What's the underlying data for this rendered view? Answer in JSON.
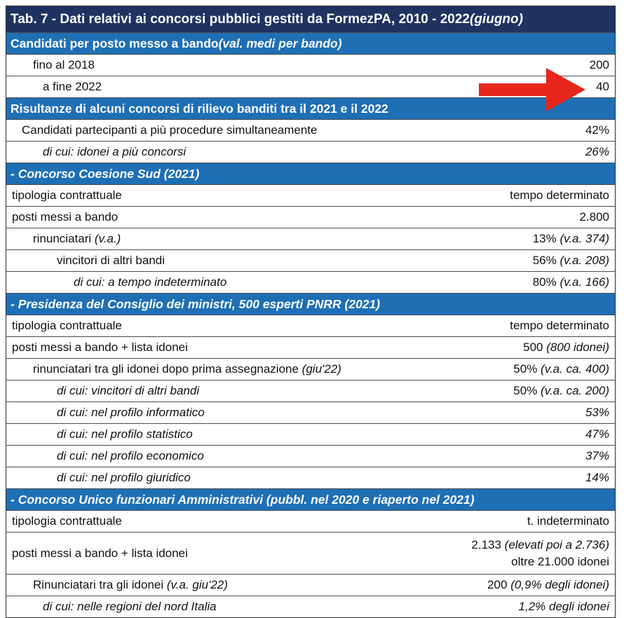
{
  "title": {
    "main": "Tab. 7 - Dati relativi ai concorsi pubblici gestiti da FormezPA, 2010 - 2022 ",
    "italic": "(giugno)"
  },
  "s1": {
    "label": "Candidati per posto messo a bando ",
    "italic": "(val. medi per bando)"
  },
  "r1": {
    "label": "fino al 2018",
    "value": "200"
  },
  "r2": {
    "label": "a fine 2022",
    "value": "40"
  },
  "s2": {
    "label": "Risultanze di alcuni concorsi di rilievo banditi tra il 2021 e il 2022"
  },
  "r3": {
    "label": "Candidati partecipanti a più procedure simultaneamente",
    "value": "42%"
  },
  "r4": {
    "label": "di cui: idonei a più concorsi",
    "value": "26%"
  },
  "s3": {
    "label": " - Concorso Coesione Sud (2021)"
  },
  "r5": {
    "label": "tipologia contrattuale",
    "value": "tempo determinato"
  },
  "r6": {
    "label": "posti messi a bando",
    "value": "2.800"
  },
  "r7": {
    "label": "rinunciatari ",
    "label_it": "(v.a.)",
    "value": "13% ",
    "value_it": "(v.a. 374)"
  },
  "r8": {
    "label": "vincitori di altri bandi",
    "value": "56% ",
    "value_it": "(v.a. 208)"
  },
  "r9": {
    "label": "di cui: a tempo indeterminato",
    "value": "80% ",
    "value_it": "(v.a. 166)"
  },
  "s4": {
    "label": " - Presidenza del Consiglio dei ministri, 500 esperti PNRR (2021)"
  },
  "r10": {
    "label": "tipologia contrattuale",
    "value": "tempo determinato"
  },
  "r11": {
    "label": "posti messi a bando + lista idonei",
    "value": "500 ",
    "value_it": "(800 idonei)"
  },
  "r12": {
    "label": "rinunciatari tra gli idonei dopo prima assegnazione ",
    "label_it": "(giu'22)",
    "value": "50% ",
    "value_it": "(v.a. ca. 400)"
  },
  "r13": {
    "label": "di cui: vincitori di altri bandi",
    "value": "50% ",
    "value_it": "(v.a. ca. 200)"
  },
  "r14": {
    "label": "di cui: nel profilo informatico",
    "value": "53%"
  },
  "r15": {
    "label": "di cui: nel profilo statistico",
    "value": "47%"
  },
  "r16": {
    "label": "di cui: nel profilo economico",
    "value": "37%"
  },
  "r17": {
    "label": "di cui: nel profilo giuridico",
    "value": "14%"
  },
  "s5": {
    "label": " - Concorso Unico funzionari Amministrativi (pubbl. nel 2020 e riaperto nel 2021)"
  },
  "r18": {
    "label": "tipologia contrattuale",
    "value": "t. indeterminato"
  },
  "r19": {
    "label": "posti messi a bando + lista idonei",
    "value1": "2.133 ",
    "value1_it": "(elevati poi a 2.736)",
    "value2": "oltre 21.000 idonei"
  },
  "r20": {
    "label": "Rinunciatari tra gli idonei ",
    "label_it": "(v.a. giu'22)",
    "value": "200 ",
    "value_it": "(0,9% degli idonei)"
  },
  "r21": {
    "label": "di cui: nelle regioni del nord Italia",
    "value": "1,2% degli idonei"
  },
  "colors": {
    "title_bg": "#1f3260",
    "section_bg": "#1f6fb5",
    "arrow": "#e8261c"
  }
}
